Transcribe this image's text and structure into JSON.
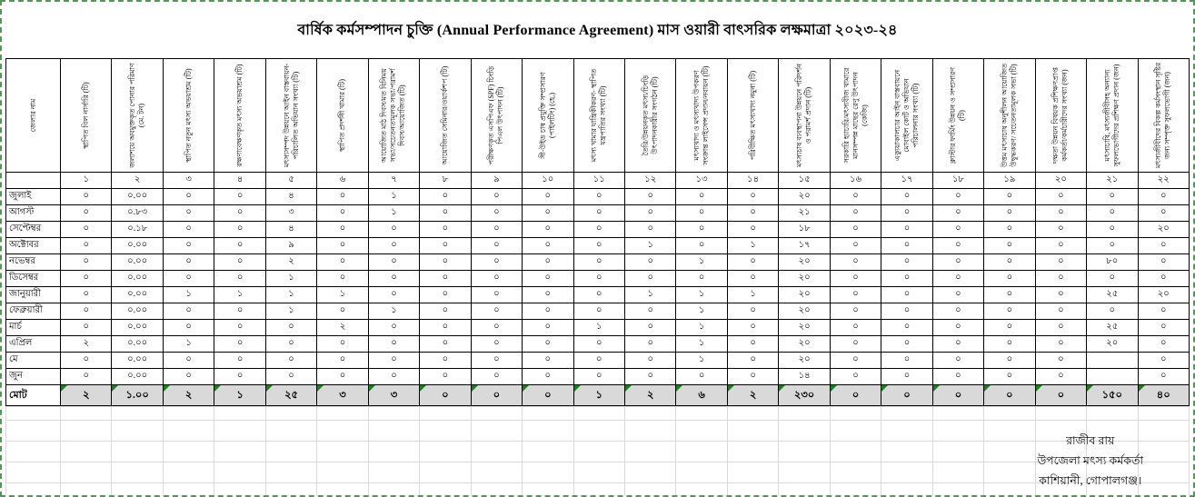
{
  "title": "বার্ষিক কর্মসম্পাদন চুক্তি (Annual Performance Agreement) মাস ওয়ারী বাৎসরিক লক্ষমাত্রা  ২০২৩-২৪",
  "table": {
    "corner_header": "জেলার নাম",
    "columns": [
      "স্থাপিত বিল নার্সারি (টি)",
      "জলাশয়ে অবমুক্তকৃত পোনার পরিমাণ (মে. টন)",
      "স্থাপিত নতুন মৎস্য অভয়াশ্রম (টি)",
      "রক্ষণাবেক্ষণকৃত মৎস্য অভয়াশ্রম (টি)",
      "মৎস্যসম্পদ উন্নয়নে আইন বাস্তবায়ন- পরিচালিত অভিযান সংখ্যা (টি)",
      "স্থাপিত প্রদর্শনী খামার (টি)",
      "আয়োজিত মাঠ দিবস/মত বিনিময় সভা/সচেতনতামূলক সভা/পরামর্শ দিবস/আয়োজিত (টি)",
      "আয়োজিত সেমিনার/ওয়ার্কশপ (টি)",
      "পরীক্ষণকৃত এসপিএফ (SPF) চিংড়ি পিএল উৎপাদন (টি)",
      "সী-উইড চাষ প্রযুক্তি সম্প্রসারণ (পাইলটিং) (হে.)",
      "মৎস্য খামার যান্ত্রিকীকরণ- স্থাপিত যন্ত্রপাতির সংখ্যা (টি)",
      "তৈরি/উন্নয়নকৃত মৎস্য/চিংড়ি উৎপাদনকারীর সংগঠন (টি)",
      "মৎস্যখাদ্য ও মৎস্যখাদ্য উপকরণ সংক্রান্ত লাইসেন্স প্রদান/নবায়ন (টি)",
      "পরিবীক্ষিত মৎস্যখাদ্য নমুনা (টি)",
      "মৎস্যচাষ ব্যবস্থাপনা উন্নয়নে পরিদর্শন ও পরামর্শ প্রদান (টি)",
      "সরকারি হ্যাচারি/মৎস্যবীজ খামারে মানসম্পন্ন মাছের রেণু উৎপাদন (কেজি)",
      "এক্যুয়াকালচার আইন বাস্তবায়নে মোবাইল কোর্ট ও অভিযান পরিচালনার সংখ্যা (টি)",
      "ক্লাস্টার ফার্মিং উন্নয়ন ও সম্প্রসারণ (টি)",
      "উত্তম মৎস্যচাষ অনুশীলন আয়োজিত উদ্বুদ্ধকরণ/ সচেতনতামূলক সভা (টি)",
      "দক্ষতা উন্নয়ন বিষয়ক প্রশিক্ষণপ্রাপ্ত কর্মকর্তা/কর্মচারীদের সংখ্যা (জন)",
      "মৎস্যচাষি, মৎস্যজীবীসহ অন্যান্য সুফলভোগীদের প্রশিক্ষণ প্রদান (জন)",
      "মৎস্যজীবীদের বিকল্প কর্মসংস্থান সৃষ্টির জন্য সম্পৃক্ত সুফলভোগী (জন)"
    ],
    "serials": [
      "১",
      "২",
      "৩",
      "৪",
      "৫",
      "৬",
      "৭",
      "৮",
      "৯",
      "১০",
      "১১",
      "১২",
      "১৩",
      "১৪",
      "১৫",
      "১৬",
      "১৭",
      "১৮",
      "১৯",
      "২০",
      "২১",
      "২২"
    ],
    "rows": [
      {
        "label": "জুলাই",
        "values": [
          "০",
          "০.০০",
          "০",
          "০",
          "৪",
          "০",
          "১",
          "০",
          "০",
          "০",
          "০",
          "০",
          "০",
          "০",
          "২০",
          "০",
          "০",
          "০",
          "০",
          "০",
          "০",
          "০"
        ]
      },
      {
        "label": "আগস্ট",
        "values": [
          "০",
          "০.৮৩",
          "০",
          "০",
          "৩",
          "০",
          "১",
          "০",
          "০",
          "০",
          "০",
          "০",
          "০",
          "০",
          "২১",
          "০",
          "০",
          "০",
          "০",
          "০",
          "০",
          "০"
        ]
      },
      {
        "label": "সেপ্টেম্বর",
        "values": [
          "০",
          "০.১৮",
          "০",
          "০",
          "৪",
          "০",
          "০",
          "০",
          "০",
          "০",
          "০",
          "০",
          "০",
          "০",
          "১৮",
          "০",
          "০",
          "০",
          "০",
          "০",
          "০",
          "২০"
        ]
      },
      {
        "label": "অক্টোবর",
        "values": [
          "০",
          "০.০০",
          "০",
          "০",
          "৯",
          "০",
          "০",
          "০",
          "০",
          "০",
          "০",
          "১",
          "০",
          "১",
          "১৭",
          "০",
          "০",
          "০",
          "০",
          "০",
          "০",
          "০"
        ]
      },
      {
        "label": "নভেম্বর",
        "values": [
          "০",
          "০.০০",
          "০",
          "০",
          "২",
          "০",
          "০",
          "০",
          "০",
          "০",
          "০",
          "০",
          "১",
          "০",
          "২০",
          "০",
          "০",
          "০",
          "০",
          "০",
          "৮০",
          "০"
        ]
      },
      {
        "label": "ডিসেম্বর",
        "values": [
          "০",
          "০.০০",
          "০",
          "০",
          "১",
          "০",
          "০",
          "০",
          "০",
          "০",
          "০",
          "০",
          "০",
          "০",
          "২০",
          "০",
          "০",
          "০",
          "০",
          "০",
          "০",
          "০"
        ]
      },
      {
        "label": "জানুয়ারী",
        "values": [
          "০",
          "০.০০",
          "১",
          "১",
          "১",
          "১",
          "০",
          "০",
          "০",
          "০",
          "০",
          "১",
          "১",
          "১",
          "২০",
          "০",
          "০",
          "০",
          "০",
          "০",
          "২৫",
          "২০"
        ]
      },
      {
        "label": "ফেব্রুয়ারী",
        "values": [
          "০",
          "০.০০",
          "০",
          "০",
          "১",
          "০",
          "১",
          "০",
          "০",
          "০",
          "০",
          "০",
          "১",
          "০",
          "২০",
          "০",
          "০",
          "০",
          "০",
          "০",
          "০",
          "০"
        ]
      },
      {
        "label": "মার্চ",
        "values": [
          "০",
          "০.০০",
          "০",
          "০",
          "০",
          "২",
          "০",
          "০",
          "০",
          "০",
          "১",
          "০",
          "১",
          "০",
          "২০",
          "০",
          "০",
          "০",
          "০",
          "০",
          "২৫",
          "০"
        ]
      },
      {
        "label": "এপ্রিল",
        "values": [
          "২",
          "০.০০",
          "১",
          "০",
          "০",
          "০",
          "০",
          "০",
          "০",
          "০",
          "০",
          "০",
          "১",
          "০",
          "২০",
          "০",
          "০",
          "০",
          "০",
          "০",
          "২০",
          "০"
        ]
      },
      {
        "label": "মে",
        "values": [
          "০",
          "০.০০",
          "০",
          "০",
          "০",
          "০",
          "০",
          "০",
          "০",
          "০",
          "০",
          "০",
          "১",
          "০",
          "২০",
          "০",
          "০",
          "০",
          "০",
          "০",
          "",
          "০"
        ]
      },
      {
        "label": "জুন",
        "values": [
          "০",
          "০.০০",
          "০",
          "০",
          "০",
          "০",
          "০",
          "০",
          "০",
          "০",
          "০",
          "০",
          "০",
          "০",
          "১৪",
          "০",
          "০",
          "০",
          "০",
          "০",
          "",
          "০"
        ]
      }
    ],
    "total": {
      "label": "মোট",
      "values": [
        "২",
        "১.০০",
        "২",
        "১",
        "২৫",
        "৩",
        "৩",
        "০",
        "০",
        "০",
        "১",
        "২",
        "৬",
        "২",
        "২৩০",
        "০",
        "০",
        "০",
        "০",
        "০",
        "১৫০",
        "৪০"
      ]
    }
  },
  "footer": {
    "lines": [
      "রাজীব রায়",
      "উপজেলা মৎস্য কর্মকর্তা",
      "কাশিয়ানী, গোপালগঞ্জ।"
    ]
  },
  "colors": {
    "total_row_bg": "#D9D9D9",
    "error_triangle_green": "#1E7E1E",
    "page_break_border_green": "#56945A",
    "grid_line_black": "#000000",
    "grid_line_faint": "#D9D9D9"
  }
}
